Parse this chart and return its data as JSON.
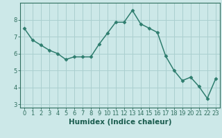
{
  "x": [
    0,
    1,
    2,
    3,
    4,
    5,
    6,
    7,
    8,
    9,
    10,
    11,
    12,
    13,
    14,
    15,
    16,
    17,
    18,
    19,
    20,
    21,
    22,
    23
  ],
  "y": [
    7.5,
    6.8,
    6.5,
    6.2,
    6.0,
    5.65,
    5.8,
    5.8,
    5.8,
    6.55,
    7.2,
    7.85,
    7.85,
    8.55,
    7.75,
    7.5,
    7.25,
    5.85,
    5.0,
    4.4,
    4.6,
    4.05,
    3.35,
    4.5
  ],
  "line_color": "#2e7d6e",
  "marker": "D",
  "marker_size": 2.5,
  "bg_color": "#cce8e8",
  "grid_color": "#aacfcf",
  "xlabel": "Humidex (Indice chaleur)",
  "ylim": [
    2.8,
    9.0
  ],
  "xlim": [
    -0.5,
    23.5
  ],
  "yticks": [
    3,
    4,
    5,
    6,
    7,
    8
  ],
  "xticks": [
    0,
    1,
    2,
    3,
    4,
    5,
    6,
    7,
    8,
    9,
    10,
    11,
    12,
    13,
    14,
    15,
    16,
    17,
    18,
    19,
    20,
    21,
    22,
    23
  ],
  "tick_color": "#2e6e5e",
  "label_color": "#1a5c4e",
  "font_size": 6.0,
  "xlabel_fontsize": 7.5,
  "linewidth": 1.1
}
